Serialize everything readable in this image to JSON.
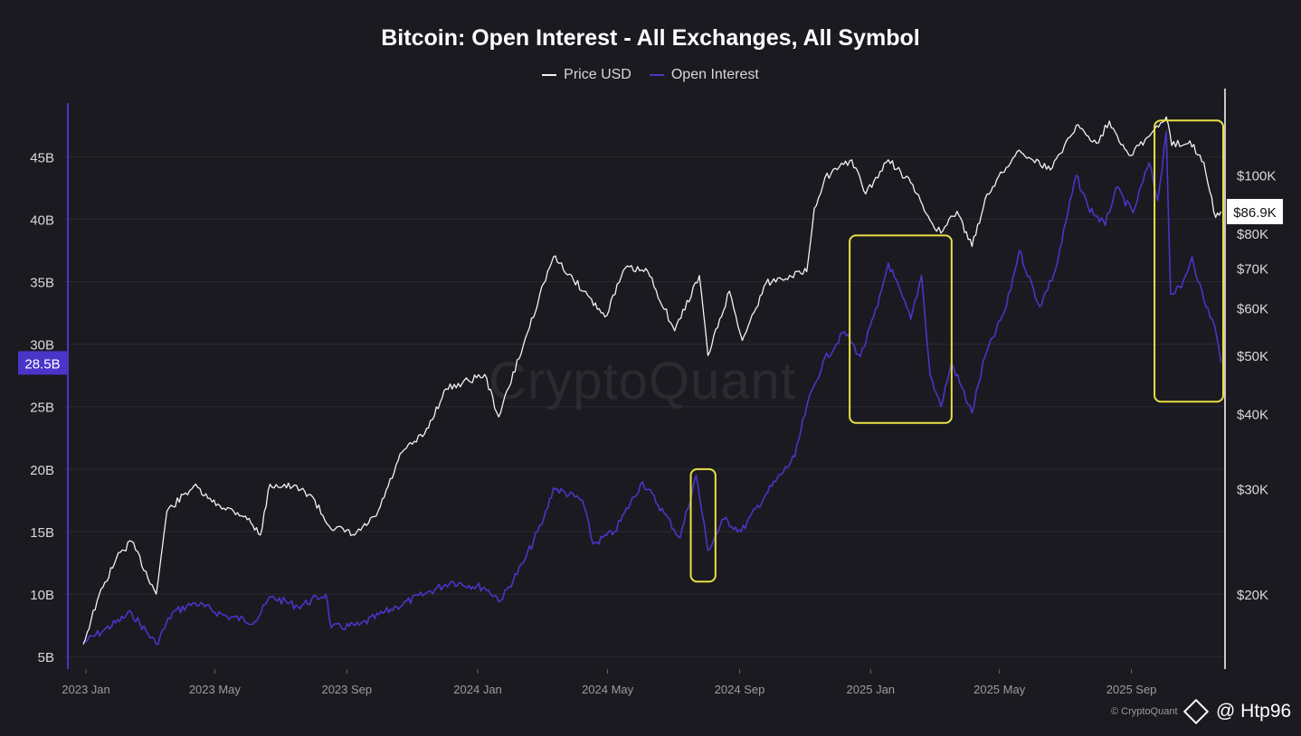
{
  "chart_data": {
    "type": "line",
    "title": "Bitcoin: Open Interest - All Exchanges, All Symbol",
    "legend": [
      "Price USD",
      "Open Interest"
    ],
    "legend_position": "top-center",
    "grid": true,
    "colors": {
      "background": "#1b1a20",
      "price": "#f2f2f2",
      "open_interest": "#4a35c8",
      "highlight": "#e8e042"
    },
    "x_ticks": [
      "2023 Jan",
      "2023 May",
      "2023 Sep",
      "2024 Jan",
      "2024 May",
      "2024 Sep",
      "2025 Jan",
      "2025 May",
      "2025 Sep"
    ],
    "y_left": {
      "ticks": [
        "5B",
        "10B",
        "15B",
        "20B",
        "25B",
        "30B",
        "35B",
        "40B",
        "45B"
      ],
      "range": [
        4,
        49
      ],
      "current_label": "28.5B"
    },
    "y_right": {
      "ticks": [
        "$20K",
        "$30K",
        "$40K",
        "$50K",
        "$60K",
        "$70K",
        "$80K",
        "$100K"
      ],
      "range": [
        15000,
        130000
      ],
      "scale": "log",
      "current_label": "$86.9K"
    },
    "series": [
      {
        "name": "Price USD",
        "axis": "right",
        "points": [
          [
            "2023-01-01",
            16500
          ],
          [
            "2023-01-14",
            19500
          ],
          [
            "2023-02-01",
            23000
          ],
          [
            "2023-02-15",
            24500
          ],
          [
            "2023-03-10",
            20000
          ],
          [
            "2023-03-20",
            27500
          ],
          [
            "2023-04-14",
            30300
          ],
          [
            "2023-05-01",
            28500
          ],
          [
            "2023-06-01",
            27000
          ],
          [
            "2023-06-15",
            25100
          ],
          [
            "2023-06-24",
            30500
          ],
          [
            "2023-07-15",
            30200
          ],
          [
            "2023-08-01",
            29300
          ],
          [
            "2023-08-18",
            26000
          ],
          [
            "2023-09-11",
            25100
          ],
          [
            "2023-10-01",
            27000
          ],
          [
            "2023-10-25",
            34500
          ],
          [
            "2023-11-15",
            37000
          ],
          [
            "2023-12-05",
            44000
          ],
          [
            "2024-01-10",
            46500
          ],
          [
            "2024-01-23",
            39500
          ],
          [
            "2024-02-15",
            52000
          ],
          [
            "2024-03-05",
            66000
          ],
          [
            "2024-03-14",
            73000
          ],
          [
            "2024-04-15",
            63000
          ],
          [
            "2024-05-01",
            58000
          ],
          [
            "2024-05-20",
            70000
          ],
          [
            "2024-06-10",
            69000
          ],
          [
            "2024-07-05",
            55000
          ],
          [
            "2024-07-28",
            68000
          ],
          [
            "2024-08-05",
            50000
          ],
          [
            "2024-08-25",
            64000
          ],
          [
            "2024-09-06",
            53000
          ],
          [
            "2024-09-28",
            66000
          ],
          [
            "2024-10-20",
            68000
          ],
          [
            "2024-11-05",
            69000
          ],
          [
            "2024-11-12",
            88000
          ],
          [
            "2024-11-22",
            99000
          ],
          [
            "2024-12-17",
            106000
          ],
          [
            "2024-12-30",
            93000
          ],
          [
            "2025-01-20",
            106000
          ],
          [
            "2025-02-10",
            97000
          ],
          [
            "2025-02-28",
            84000
          ],
          [
            "2025-03-10",
            80000
          ],
          [
            "2025-03-25",
            87000
          ],
          [
            "2025-04-08",
            76000
          ],
          [
            "2025-04-22",
            93000
          ],
          [
            "2025-05-10",
            103000
          ],
          [
            "2025-05-22",
            110000
          ],
          [
            "2025-06-20",
            102000
          ],
          [
            "2025-07-14",
            121000
          ],
          [
            "2025-08-02",
            113000
          ],
          [
            "2025-08-14",
            123000
          ],
          [
            "2025-09-01",
            108000
          ],
          [
            "2025-09-20",
            116000
          ],
          [
            "2025-10-06",
            125000
          ],
          [
            "2025-10-11",
            112000
          ],
          [
            "2025-10-28",
            114000
          ],
          [
            "2025-11-10",
            105000
          ],
          [
            "2025-11-21",
            85000
          ],
          [
            "2025-11-26",
            86900
          ]
        ]
      },
      {
        "name": "Open Interest",
        "axis": "left",
        "points": [
          [
            "2023-01-01",
            6.1
          ],
          [
            "2023-01-20",
            7.1
          ],
          [
            "2023-02-15",
            8.5
          ],
          [
            "2023-03-10",
            6.0
          ],
          [
            "2023-03-25",
            8.5
          ],
          [
            "2023-04-15",
            9.3
          ],
          [
            "2023-05-15",
            8.2
          ],
          [
            "2023-06-10",
            7.8
          ],
          [
            "2023-06-25",
            9.8
          ],
          [
            "2023-07-20",
            9.0
          ],
          [
            "2023-08-15",
            10.0
          ],
          [
            "2023-08-20",
            7.3
          ],
          [
            "2023-09-15",
            7.5
          ],
          [
            "2023-10-20",
            9.0
          ],
          [
            "2023-11-15",
            10.0
          ],
          [
            "2023-12-10",
            11.0
          ],
          [
            "2024-01-10",
            10.5
          ],
          [
            "2024-01-25",
            9.5
          ],
          [
            "2024-02-15",
            12.5
          ],
          [
            "2024-03-05",
            16.0
          ],
          [
            "2024-03-14",
            18.5
          ],
          [
            "2024-04-10",
            17.5
          ],
          [
            "2024-04-20",
            14.0
          ],
          [
            "2024-05-10",
            15.0
          ],
          [
            "2024-06-05",
            19.0
          ],
          [
            "2024-06-25",
            16.5
          ],
          [
            "2024-07-10",
            14.5
          ],
          [
            "2024-07-25",
            19.5
          ],
          [
            "2024-08-05",
            13.5
          ],
          [
            "2024-08-20",
            16.0
          ],
          [
            "2024-09-05",
            15.0
          ],
          [
            "2024-09-28",
            18.0
          ],
          [
            "2024-10-25",
            21.0
          ],
          [
            "2024-11-05",
            25.0
          ],
          [
            "2024-11-20",
            28.5
          ],
          [
            "2024-12-10",
            31.0
          ],
          [
            "2024-12-25",
            29.0
          ],
          [
            "2025-01-10",
            33.0
          ],
          [
            "2025-01-20",
            36.5
          ],
          [
            "2025-02-10",
            32.0
          ],
          [
            "2025-02-20",
            35.5
          ],
          [
            "2025-02-28",
            27.5
          ],
          [
            "2025-03-10",
            25.0
          ],
          [
            "2025-03-20",
            28.5
          ],
          [
            "2025-04-08",
            24.5
          ],
          [
            "2025-04-20",
            29.0
          ],
          [
            "2025-05-10",
            33.0
          ],
          [
            "2025-05-22",
            37.5
          ],
          [
            "2025-06-10",
            33.0
          ],
          [
            "2025-06-25",
            36.0
          ],
          [
            "2025-07-14",
            43.5
          ],
          [
            "2025-07-25",
            41.0
          ],
          [
            "2025-08-10",
            39.5
          ],
          [
            "2025-08-20",
            42.5
          ],
          [
            "2025-09-05",
            40.5
          ],
          [
            "2025-09-20",
            44.5
          ],
          [
            "2025-09-28",
            41.5
          ],
          [
            "2025-10-06",
            47.0
          ],
          [
            "2025-10-10",
            34.0
          ],
          [
            "2025-10-20",
            34.5
          ],
          [
            "2025-10-30",
            37.0
          ],
          [
            "2025-11-10",
            33.5
          ],
          [
            "2025-11-20",
            31.5
          ],
          [
            "2025-11-26",
            28.5
          ]
        ]
      }
    ],
    "highlight_boxes": [
      {
        "from": "2024-07-20",
        "to": "2024-08-12",
        "y_from": 11,
        "y_to": 20
      },
      {
        "from": "2024-12-15",
        "to": "2025-03-20",
        "y_from": 23.7,
        "y_to": 38.7
      },
      {
        "from": "2025-09-25",
        "to": "2025-11-28",
        "y_from": 25.4,
        "y_to": 47.9
      }
    ]
  },
  "watermark": "CryptoQuant",
  "credit": "© CryptoQuant",
  "handle": "@ Htp96"
}
